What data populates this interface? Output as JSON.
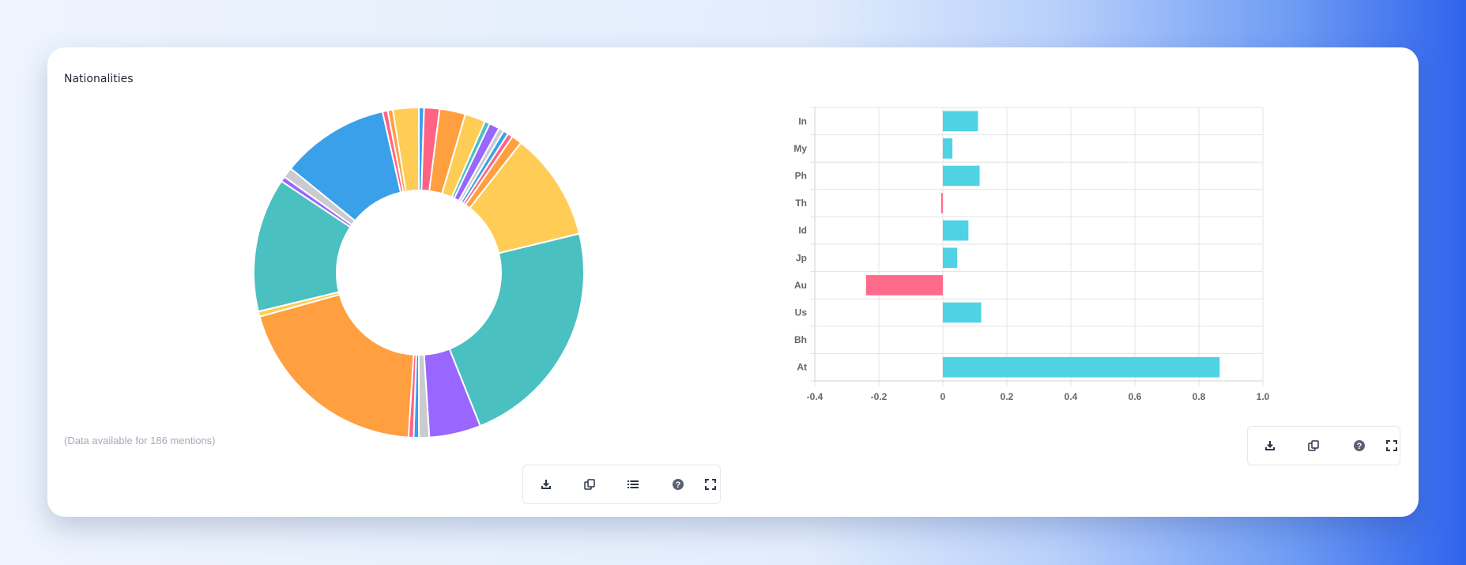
{
  "card": {
    "title": "Nationalities",
    "note": "(Data available for 186 mentions)"
  },
  "colors": {
    "positive": "#4fd3e4",
    "negative": "#ff6b8a",
    "blue": "#3aa0ea",
    "teal": "#4bc0c0",
    "orange": "#ff9f40",
    "yellow": "#ffcd56",
    "purple": "#9966ff",
    "grey": "#c9cbcf",
    "red": "#ff6384"
  },
  "chart_data": [
    {
      "type": "pie",
      "variant": "doughnut",
      "slices": [
        {
          "value": 0.5,
          "color": "#3aa0ea"
        },
        {
          "value": 1.5,
          "color": "#ff6384"
        },
        {
          "value": 2.5,
          "color": "#ff9f40"
        },
        {
          "value": 2,
          "color": "#ffcd56"
        },
        {
          "value": 0.5,
          "color": "#4bc0c0"
        },
        {
          "value": 1,
          "color": "#9966ff"
        },
        {
          "value": 0.5,
          "color": "#c9cbcf"
        },
        {
          "value": 0.5,
          "color": "#3aa0ea"
        },
        {
          "value": 0.5,
          "color": "#ff6384"
        },
        {
          "value": 1,
          "color": "#ff9f40"
        },
        {
          "value": 10.5,
          "color": "#ffcd56"
        },
        {
          "value": 22.5,
          "color": "#4bc0c0"
        },
        {
          "value": 5,
          "color": "#9966ff"
        },
        {
          "value": 1,
          "color": "#c9cbcf"
        },
        {
          "value": 0.5,
          "color": "#3aa0ea"
        },
        {
          "value": 0.5,
          "color": "#ff6384"
        },
        {
          "value": 19.5,
          "color": "#ff9f40"
        },
        {
          "value": 0.5,
          "color": "#ffcd56"
        },
        {
          "value": 13,
          "color": "#4bc0c0"
        },
        {
          "value": 0.5,
          "color": "#9966ff"
        },
        {
          "value": 1,
          "color": "#c9cbcf"
        },
        {
          "value": 10.5,
          "color": "#3aa0ea"
        },
        {
          "value": 0.5,
          "color": "#ff6384"
        },
        {
          "value": 0.5,
          "color": "#ff9f40"
        },
        {
          "value": 2.5,
          "color": "#ffcd56"
        }
      ]
    },
    {
      "type": "bar",
      "orientation": "horizontal",
      "categories": [
        "In",
        "My",
        "Ph",
        "Th",
        "Id",
        "Jp",
        "Au",
        "Us",
        "Bh",
        "At"
      ],
      "values": [
        0.11,
        0.03,
        0.115,
        -0.005,
        0.08,
        0.045,
        -0.24,
        0.12,
        0.0,
        0.865
      ],
      "xlim": [
        -0.4,
        1.0
      ],
      "xticks": [
        "-0.4",
        "-0.2",
        "0",
        "0.2",
        "0.4",
        "0.6",
        "0.8",
        "1.0"
      ],
      "xtick_values": [
        -0.4,
        -0.2,
        0,
        0.2,
        0.4,
        0.6,
        0.8,
        1.0
      ],
      "grid": true
    }
  ],
  "toolbars": {
    "donut": [
      "download-icon",
      "copy-icon",
      "list-icon",
      "help-icon",
      "fullscreen-icon"
    ],
    "bar": [
      "download-icon",
      "copy-icon",
      "help-icon",
      "fullscreen-icon"
    ]
  }
}
